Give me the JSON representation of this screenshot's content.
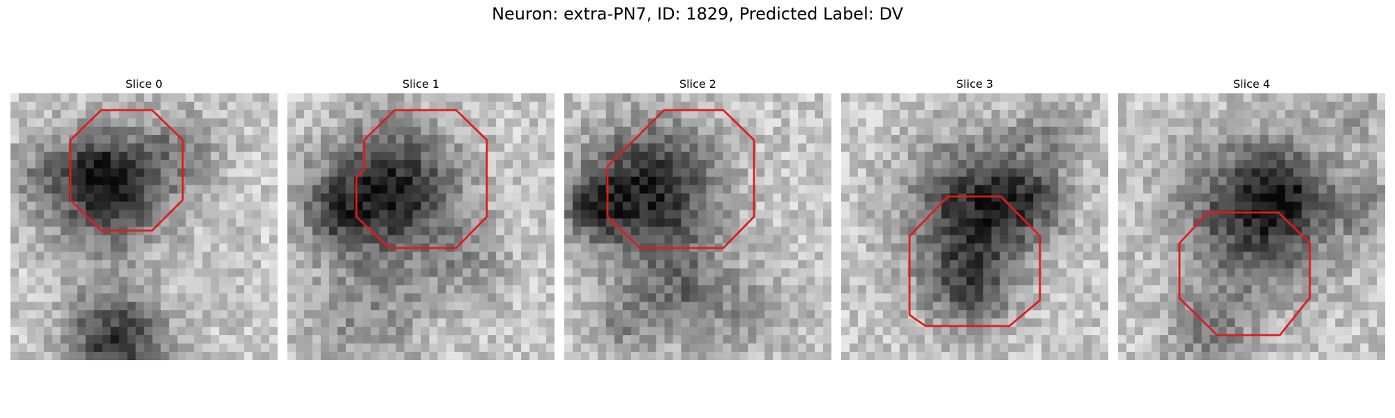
{
  "figure": {
    "title": "Neuron: extra-PN7, ID: 1829, Predicted Label: DV"
  },
  "slices": [
    {
      "title": "Slice 0"
    },
    {
      "title": "Slice 1"
    },
    {
      "title": "Slice 2"
    },
    {
      "title": "Slice 3"
    },
    {
      "title": "Slice 4"
    }
  ],
  "colors": {
    "outline": "#e01b1b"
  }
}
